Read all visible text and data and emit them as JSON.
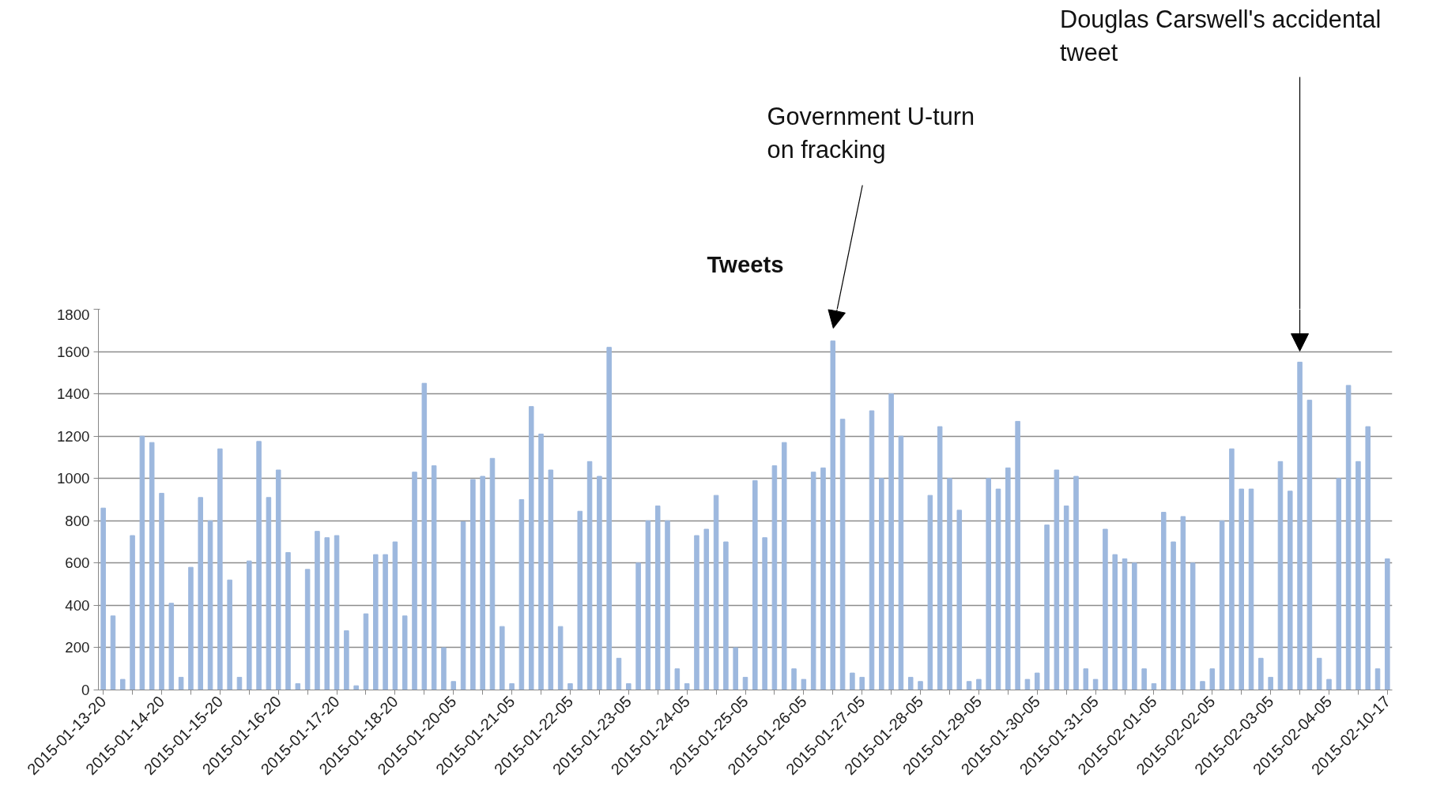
{
  "chart_data": {
    "type": "bar",
    "title": "Tweets",
    "categories": [
      "2015-01-13-20",
      null,
      null,
      null,
      null,
      null,
      "2015-01-14-20",
      null,
      null,
      null,
      null,
      null,
      "2015-01-15-20",
      null,
      null,
      null,
      null,
      null,
      "2015-01-16-20",
      null,
      null,
      null,
      null,
      null,
      "2015-01-17-20",
      null,
      null,
      null,
      null,
      null,
      "2015-01-18-20",
      null,
      null,
      null,
      null,
      null,
      "2015-01-20-05",
      null,
      null,
      null,
      null,
      null,
      "2015-01-21-05",
      null,
      null,
      null,
      null,
      null,
      "2015-01-22-05",
      null,
      null,
      null,
      null,
      null,
      "2015-01-23-05",
      null,
      null,
      null,
      null,
      null,
      "2015-01-24-05",
      null,
      null,
      null,
      null,
      null,
      "2015-01-25-05",
      null,
      null,
      null,
      null,
      null,
      "2015-01-26-05",
      null,
      null,
      null,
      null,
      null,
      "2015-01-27-05",
      null,
      null,
      null,
      null,
      null,
      "2015-01-28-05",
      null,
      null,
      null,
      null,
      null,
      "2015-01-29-05",
      null,
      null,
      null,
      null,
      null,
      "2015-01-30-05",
      null,
      null,
      null,
      null,
      null,
      "2015-01-31-05",
      null,
      null,
      null,
      null,
      null,
      "2015-02-01-05",
      null,
      null,
      null,
      null,
      null,
      "2015-02-02-05",
      null,
      null,
      null,
      null,
      null,
      "2015-02-03-05",
      null,
      null,
      null,
      null,
      null,
      "2015-02-04-05",
      null,
      null,
      null,
      null,
      null,
      "2015-02-10-17"
    ],
    "values": [
      860,
      350,
      50,
      730,
      1200,
      1170,
      930,
      410,
      60,
      580,
      910,
      800,
      1140,
      520,
      60,
      610,
      1175,
      910,
      1040,
      650,
      30,
      570,
      750,
      720,
      730,
      280,
      20,
      360,
      640,
      640,
      700,
      350,
      1030,
      1450,
      1060,
      200,
      40,
      795,
      995,
      1010,
      1095,
      300,
      30,
      900,
      1340,
      1210,
      1040,
      300,
      30,
      845,
      1080,
      1010,
      1620,
      150,
      30,
      600,
      800,
      870,
      800,
      100,
      30,
      730,
      760,
      920,
      700,
      200,
      60,
      990,
      720,
      1060,
      1170,
      100,
      50,
      1030,
      1050,
      1650,
      1280,
      80,
      60,
      1320,
      1000,
      1400,
      1200,
      60,
      40,
      920,
      1245,
      1000,
      850,
      40,
      50,
      1000,
      950,
      1050,
      1270,
      50,
      80,
      780,
      1040,
      870,
      1010,
      100,
      50,
      760,
      640,
      620,
      600,
      100,
      30,
      840,
      700,
      820,
      600,
      40,
      100,
      800,
      1140,
      950,
      950,
      150,
      60,
      1080,
      940,
      1550,
      1370,
      150,
      50,
      1000,
      1440,
      1080,
      1245,
      100,
      620
    ],
    "color": "#9db8de",
    "ylim": [
      0,
      1800
    ],
    "yticks": [
      0,
      200,
      400,
      600,
      800,
      1000,
      1200,
      1400,
      1600,
      1800
    ],
    "grid": "y",
    "annotations": [
      "Government U-turn\non fracking",
      "Douglas Carswell's accidental\ntweet"
    ]
  }
}
